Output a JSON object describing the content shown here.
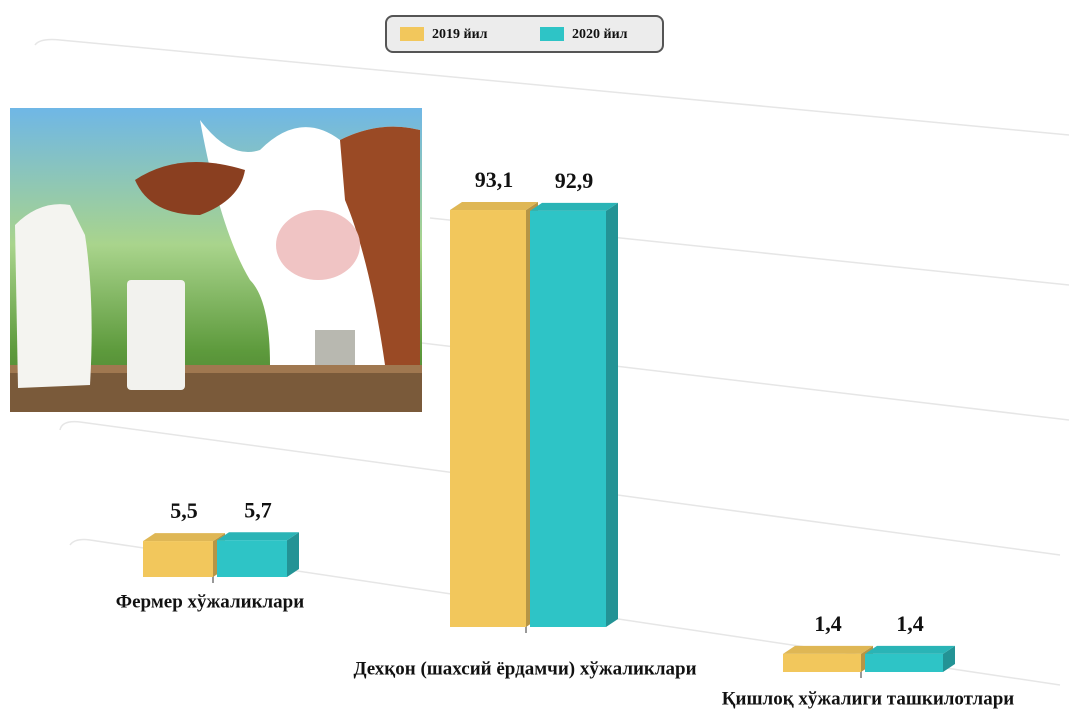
{
  "chart_data": {
    "type": "bar",
    "categories": [
      "Фермер хўжаликлари",
      "Дехқон (шахсий ёрдамчи) хўжаликлари",
      "Қишлоқ хўжалиги ташкилотлари"
    ],
    "series": [
      {
        "name": "2019 йил",
        "color": "#f2c75c",
        "values": [
          5.5,
          93.1,
          1.4
        ],
        "value_labels": [
          "5,5",
          "93,1",
          "1,4"
        ]
      },
      {
        "name": "2020 йил",
        "color": "#2ec4c6",
        "values": [
          5.7,
          92.9,
          1.4
        ],
        "value_labels": [
          "5,7",
          "92,9",
          "1,4"
        ]
      }
    ],
    "legend": "top"
  }
}
